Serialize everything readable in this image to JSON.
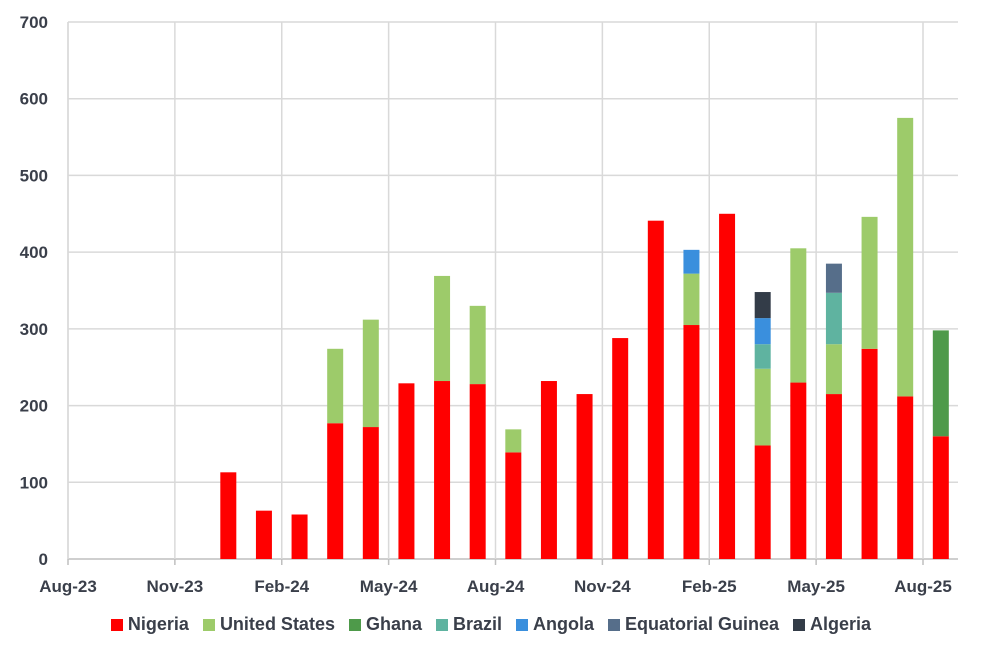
{
  "chart_data": {
    "type": "bar",
    "stacked": true,
    "title": "",
    "xlabel": "",
    "ylabel": "",
    "ylim": [
      0,
      700
    ],
    "yticks": [
      0,
      100,
      200,
      300,
      400,
      500,
      600,
      700
    ],
    "grid": true,
    "legend_position": "bottom",
    "xtick_labels": [
      "Aug-23",
      "Nov-23",
      "Feb-24",
      "May-24",
      "Aug-24",
      "Nov-24",
      "Feb-25",
      "May-25",
      "Aug-25"
    ],
    "categories": [
      "Aug-23",
      "Sep-23",
      "Oct-23",
      "Nov-23",
      "Dec-23",
      "Jan-24",
      "Feb-24",
      "Mar-24",
      "Apr-24",
      "May-24",
      "Jun-24",
      "Jul-24",
      "Aug-24",
      "Sep-24",
      "Oct-24",
      "Nov-24",
      "Dec-24",
      "Jan-25",
      "Feb-25",
      "Mar-25",
      "Apr-25",
      "May-25",
      "Jun-25",
      "Jul-25",
      "Aug-25"
    ],
    "series": [
      {
        "name": "Nigeria",
        "color": "#ff0000",
        "values": [
          0,
          0,
          0,
          0,
          113,
          63,
          58,
          177,
          172,
          229,
          232,
          228,
          139,
          232,
          215,
          288,
          441,
          305,
          450,
          148,
          230,
          215,
          274,
          212,
          160
        ]
      },
      {
        "name": "United States",
        "color": "#9dcb6a",
        "values": [
          0,
          0,
          0,
          0,
          0,
          0,
          0,
          97,
          140,
          0,
          137,
          102,
          30,
          0,
          0,
          0,
          0,
          67,
          0,
          100,
          175,
          65,
          172,
          363,
          0
        ]
      },
      {
        "name": "Ghana",
        "color": "#4e9a4a",
        "values": [
          0,
          0,
          0,
          0,
          0,
          0,
          0,
          0,
          0,
          0,
          0,
          0,
          0,
          0,
          0,
          0,
          0,
          0,
          0,
          0,
          0,
          0,
          0,
          0,
          138
        ]
      },
      {
        "name": "Brazil",
        "color": "#5fb3a0",
        "values": [
          0,
          0,
          0,
          0,
          0,
          0,
          0,
          0,
          0,
          0,
          0,
          0,
          0,
          0,
          0,
          0,
          0,
          0,
          0,
          32,
          0,
          67,
          0,
          0,
          0
        ]
      },
      {
        "name": "Angola",
        "color": "#3a8fdd",
        "values": [
          0,
          0,
          0,
          0,
          0,
          0,
          0,
          0,
          0,
          0,
          0,
          0,
          0,
          0,
          0,
          0,
          0,
          31,
          0,
          34,
          0,
          0,
          0,
          0,
          0
        ]
      },
      {
        "name": "Equatorial Guinea",
        "color": "#566e8a",
        "values": [
          0,
          0,
          0,
          0,
          0,
          0,
          0,
          0,
          0,
          0,
          0,
          0,
          0,
          0,
          0,
          0,
          0,
          0,
          0,
          0,
          0,
          38,
          0,
          0,
          0
        ]
      },
      {
        "name": "Algeria",
        "color": "#333c48",
        "values": [
          0,
          0,
          0,
          0,
          0,
          0,
          0,
          0,
          0,
          0,
          0,
          0,
          0,
          0,
          0,
          0,
          0,
          0,
          0,
          34,
          0,
          0,
          0,
          0,
          0
        ]
      }
    ]
  }
}
